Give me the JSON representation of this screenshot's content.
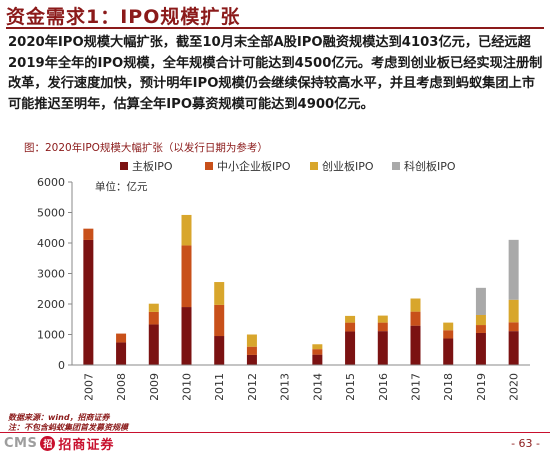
{
  "header": {
    "title": "资金需求1：IPO规模扩张"
  },
  "body_text": "2020年IPO规模大幅扩张，截至10月末全部A股IPO融资规模达到4103亿元，已经远超2019年全年的IPO规模，全年规模合计可能达到4500亿元。考虑到创业板已经实现注册制改革，发行速度加快，预计明年IPO规模仍会继续保持较高水平，并且考虑到蚂蚁集团上市可能推迟至明年，估算全年IPO募资规模可能达到4900亿元。",
  "figure": {
    "caption": "图：2020年IPO规模大幅扩张（以发行日期为参考）",
    "unit_label": "单位：亿元"
  },
  "chart_data": {
    "type": "bar",
    "stacked": true,
    "categories": [
      "2007",
      "2008",
      "2009",
      "2010",
      "2011",
      "2012",
      "2013",
      "2014",
      "2015",
      "2016",
      "2017",
      "2018",
      "2019",
      "2020"
    ],
    "series": [
      {
        "name": "主板IPO",
        "color": "#7b1212",
        "values": [
          4100,
          740,
          1330,
          1900,
          950,
          330,
          0,
          340,
          1100,
          1110,
          1290,
          870,
          1050,
          1110
        ]
      },
      {
        "name": "中小企业板IPO",
        "color": "#c8501a",
        "values": [
          370,
          290,
          410,
          2020,
          1020,
          270,
          0,
          180,
          290,
          280,
          460,
          270,
          260,
          290
        ]
      },
      {
        "name": "创业板IPO",
        "color": "#d8a62c",
        "values": [
          0,
          0,
          270,
          1000,
          750,
          400,
          0,
          160,
          220,
          230,
          430,
          250,
          330,
          740
        ]
      },
      {
        "name": "科创板IPO",
        "color": "#a9a9a9",
        "values": [
          0,
          0,
          0,
          0,
          0,
          0,
          0,
          0,
          0,
          0,
          0,
          0,
          890,
          1963
        ]
      }
    ],
    "ylim": [
      0,
      6000
    ],
    "yticks": [
      "0",
      "1000",
      "2000",
      "3000",
      "4000",
      "5000",
      "6000"
    ],
    "legend_position": "top"
  },
  "footer": {
    "source_line1": "数据来源：wind，招商证券",
    "source_line2": "注：不包含蚂蚁集团首发募资规模",
    "logo_text": "CMS",
    "logo_badge": "招",
    "logo_cn": "招商证券",
    "page": "- 63 -"
  }
}
